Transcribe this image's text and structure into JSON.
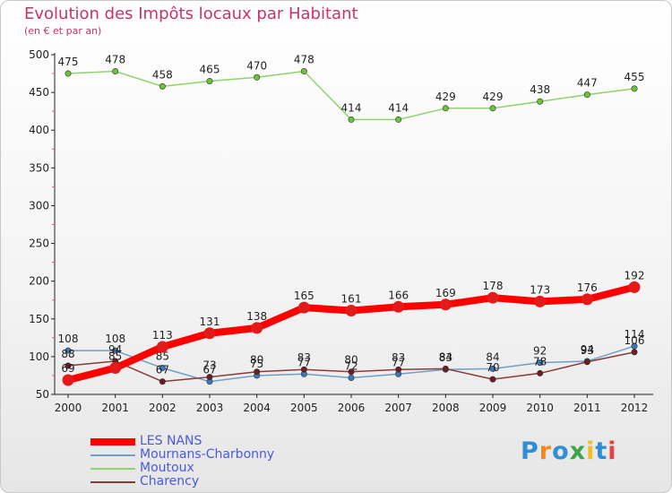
{
  "title": "Evolution des Impôts locaux par Habitant",
  "subtitle": "(en € et par an)",
  "logo": {
    "text": "Proxiti",
    "letters": [
      {
        "ch": "P",
        "color": "#2e8ed8"
      },
      {
        "ch": "r",
        "color": "#f08a1e"
      },
      {
        "ch": "o",
        "color": "#2e8ed8"
      },
      {
        "ch": "x",
        "color": "#3aa648"
      },
      {
        "ch": "i",
        "color": "#f0c01e"
      },
      {
        "ch": "t",
        "color": "#2e8ed8"
      },
      {
        "ch": "i",
        "color": "#e84040"
      }
    ]
  },
  "chart_data": {
    "type": "line",
    "title": "Evolution des Impôts locaux par Habitant",
    "xlabel": "",
    "ylabel": "(en € et par an)",
    "ylim": [
      50,
      500
    ],
    "yticks": [
      50,
      100,
      150,
      200,
      250,
      300,
      350,
      400,
      450,
      500
    ],
    "categories": [
      "2000",
      "2001",
      "2002",
      "2003",
      "2004",
      "2005",
      "2006",
      "2007",
      "2008",
      "2009",
      "2010",
      "2011",
      "2012"
    ],
    "grid": false,
    "legend_position": "bottom-left",
    "series": [
      {
        "name": "LES NANS",
        "color": "#ff0000",
        "marker": "#e31a1a",
        "thick": true,
        "values": [
          69,
          85,
          113,
          131,
          138,
          165,
          161,
          166,
          169,
          178,
          173,
          176,
          192
        ],
        "labels": [
          "69",
          "85",
          "113",
          "131",
          "138",
          "165",
          "161",
          "166",
          "169",
          "178",
          "173",
          "176",
          "192"
        ]
      },
      {
        "name": "Mournans-Charbonny",
        "color": "#6d9fc7",
        "marker": "#3d78b8",
        "thick": false,
        "values": [
          108,
          108,
          85,
          67,
          75,
          77,
          72,
          77,
          83,
          84,
          92,
          94,
          114
        ],
        "labels": [
          "108",
          "108",
          "85",
          "67",
          "75",
          "77",
          "72",
          "77",
          "83",
          "84",
          "92",
          "94",
          "114"
        ]
      },
      {
        "name": "Moutoux",
        "color": "#8fd46a",
        "marker": "#6cc23a",
        "thick": false,
        "values": [
          475,
          478,
          458,
          465,
          470,
          478,
          414,
          414,
          429,
          429,
          438,
          447,
          455
        ],
        "labels": [
          "475",
          "478",
          "458",
          "465",
          "470",
          "478",
          "414",
          "414",
          "429",
          "429",
          "438",
          "447",
          "455"
        ]
      },
      {
        "name": "Charency",
        "color": "#8a3a3a",
        "marker": "#6b1c24",
        "thick": false,
        "values": [
          88,
          94,
          67,
          73,
          80,
          83,
          80,
          83,
          84,
          70,
          78,
          93,
          106
        ],
        "labels": [
          "88",
          "94",
          "67",
          "73",
          "80",
          "83",
          "80",
          "83",
          "84",
          "70",
          "78",
          "93",
          "106"
        ]
      }
    ]
  }
}
